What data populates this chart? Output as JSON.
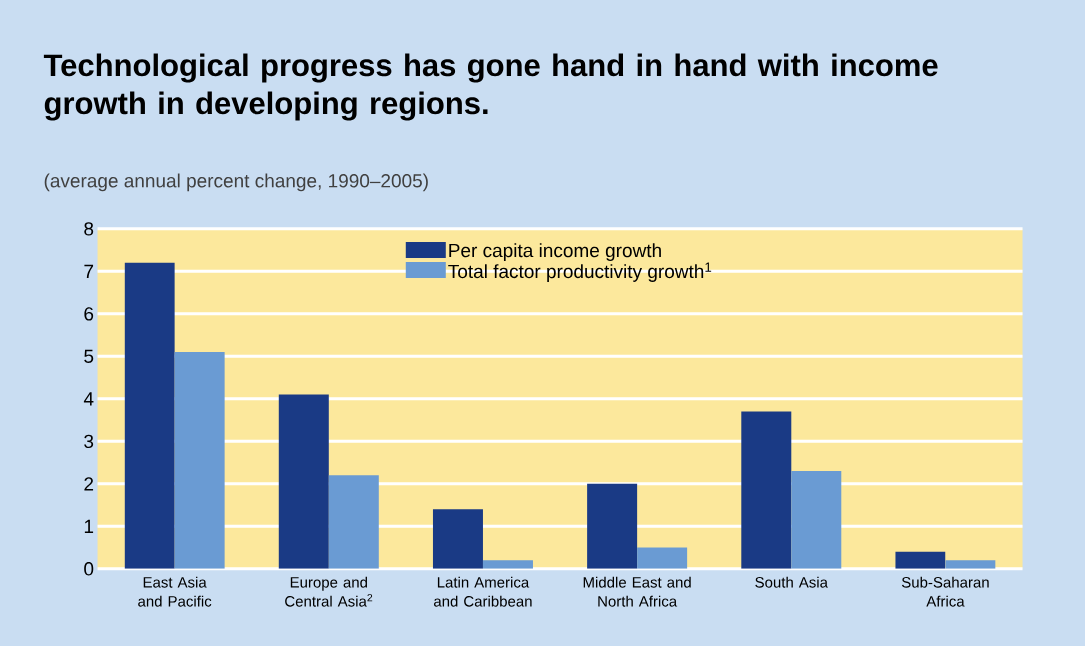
{
  "chart_data": {
    "type": "bar",
    "title": "Technological progress has gone hand in hand with income growth in developing regions.",
    "subtitle": "(average annual percent change, 1990–2005)",
    "categories": [
      "East Asia and Pacific",
      "Europe and Central Asia$^{2}$",
      "Latin America and Caribbean",
      "Middle East and North Africa",
      "South Asia",
      "Sub-Saharan Africa"
    ],
    "series": [
      {
        "name": "Per capita income growth",
        "color": "#1a3a85",
        "values": [
          7.2,
          4.1,
          1.4,
          2.0,
          3.7,
          0.4
        ]
      },
      {
        "name": "Total factor productivity growth$^{1}$",
        "color": "#6a9bd3",
        "values": [
          5.1,
          2.2,
          0.2,
          0.5,
          2.3,
          0.2
        ]
      }
    ],
    "ylim": [
      0,
      8
    ],
    "yticks": [
      0,
      1,
      2,
      3,
      4,
      5,
      6,
      7,
      8
    ],
    "grid": "y",
    "legend": "top"
  }
}
